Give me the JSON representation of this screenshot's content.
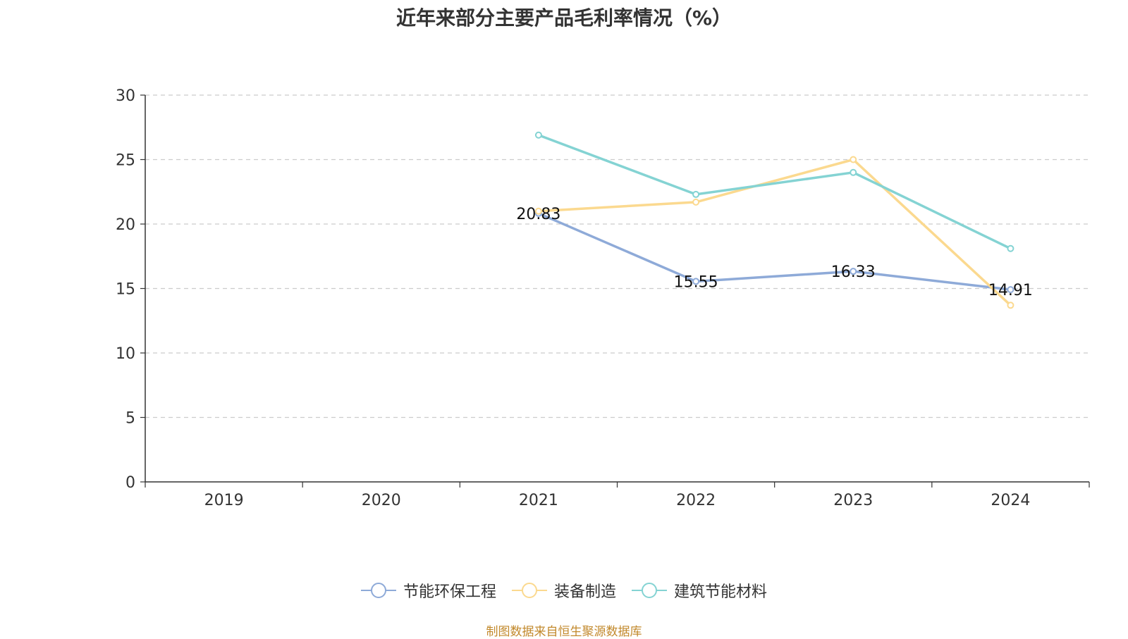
{
  "chart_data": {
    "type": "line",
    "title": "近年来部分主要产品毛利率情况（%）",
    "categories": [
      "2019",
      "2020",
      "2021",
      "2022",
      "2023",
      "2024"
    ],
    "ylim": [
      0,
      30
    ],
    "yticks": [
      "0",
      "5",
      "10",
      "15",
      "20",
      "25",
      "30"
    ],
    "grid": "dashed horizontal",
    "legend_position": "bottom",
    "series": [
      {
        "name": "节能环保工程",
        "color": "#8eaad8",
        "values": [
          null,
          null,
          20.83,
          15.55,
          16.33,
          14.91
        ],
        "labels": [
          "",
          "",
          "20.83",
          "15.55",
          "16.33",
          "14.91"
        ]
      },
      {
        "name": "装备制造",
        "color": "#fbd98f",
        "values": [
          null,
          null,
          21.0,
          21.7,
          25.0,
          13.7
        ],
        "labels": [
          "",
          "",
          "",
          "",
          "",
          ""
        ]
      },
      {
        "name": "建筑节能材料",
        "color": "#84d3d3",
        "values": [
          null,
          null,
          26.9,
          22.3,
          24.0,
          18.1
        ],
        "labels": [
          "",
          "",
          "",
          "",
          "",
          ""
        ]
      }
    ]
  },
  "source": "制图数据来自恒生聚源数据库"
}
